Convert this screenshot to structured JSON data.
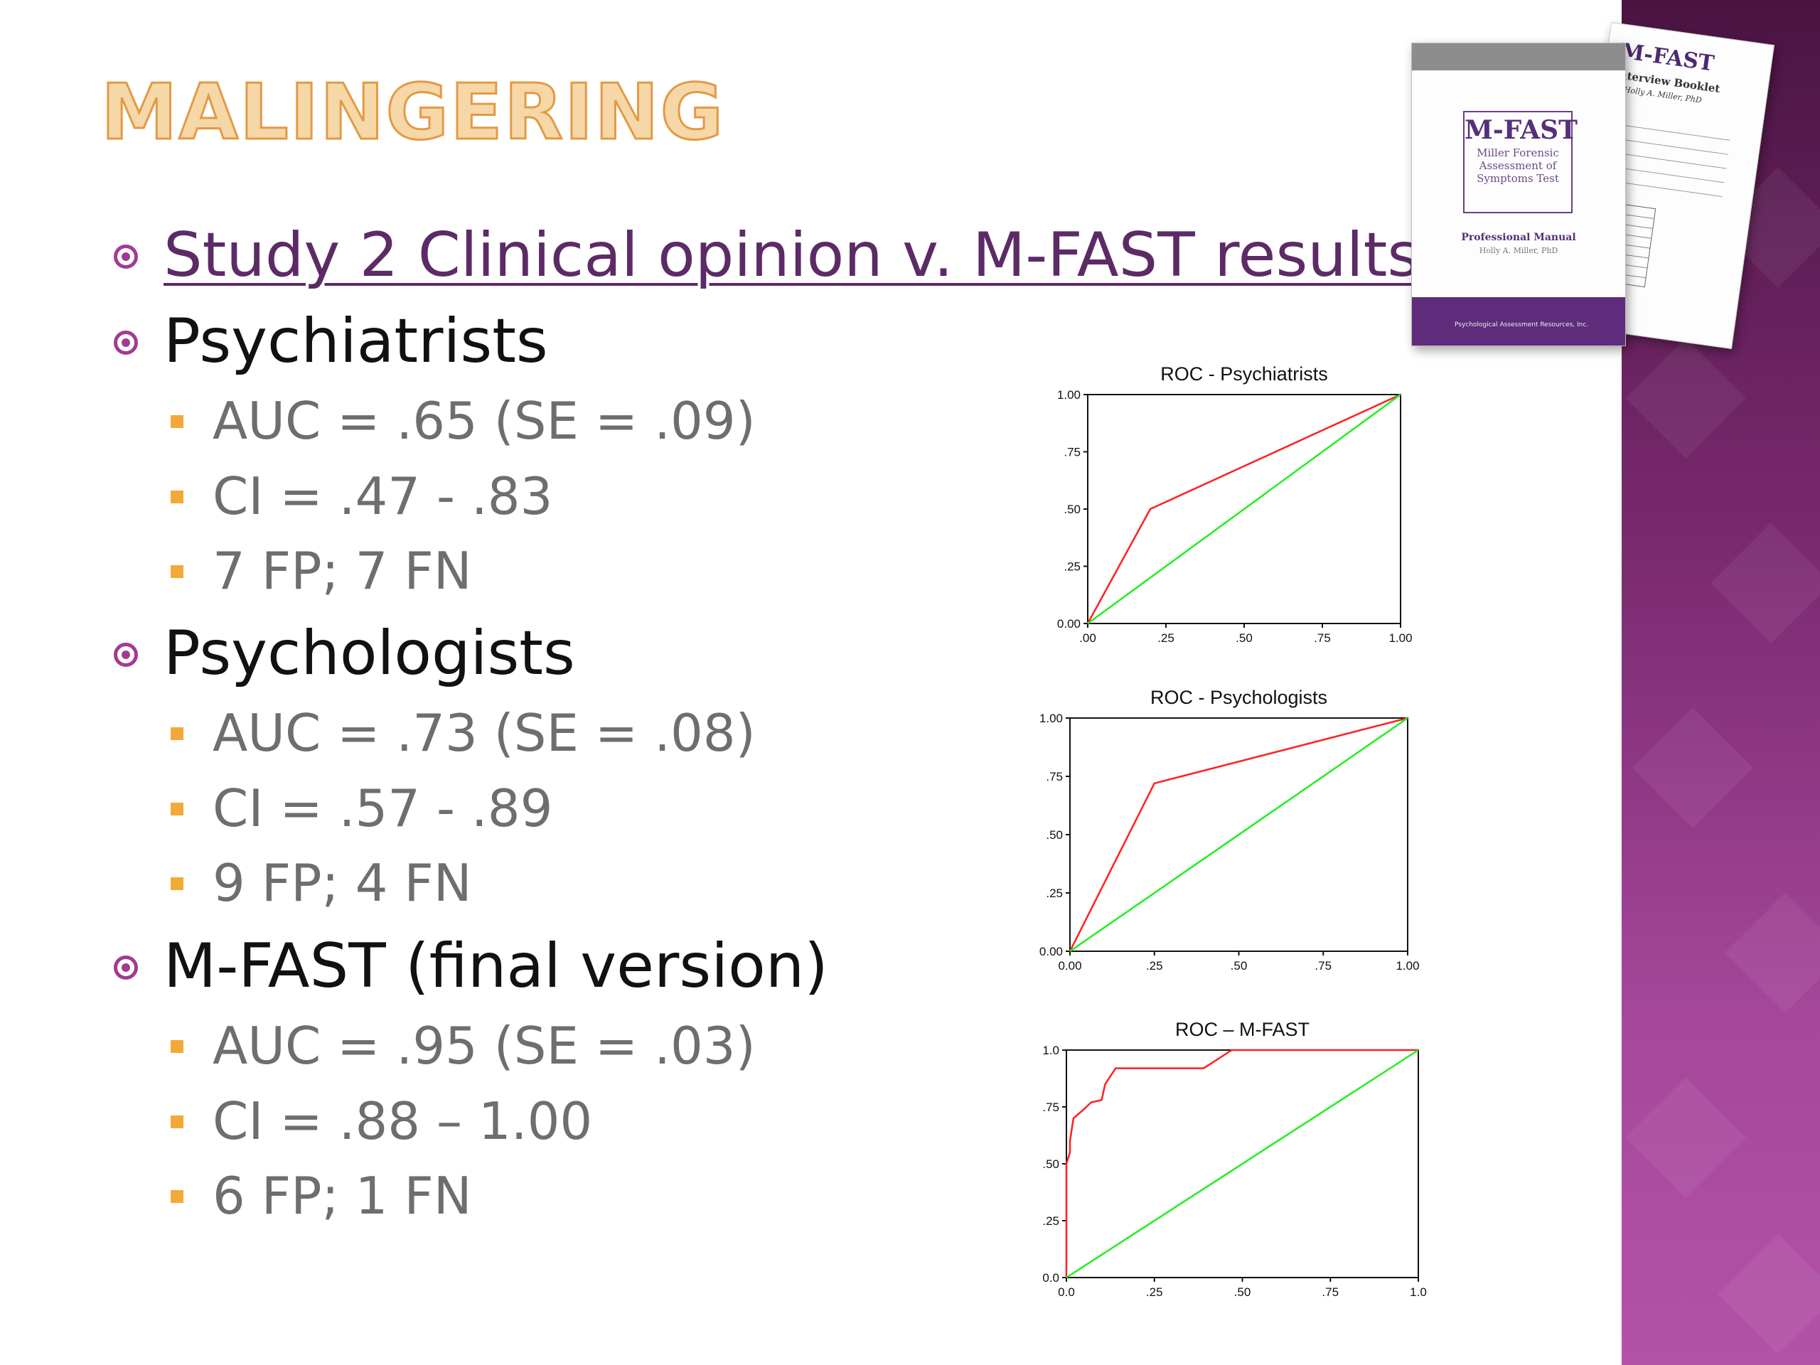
{
  "slide": {
    "title": "MALINGERING",
    "colors": {
      "title_fill": "#f6d7a8",
      "title_outline": "#e39a45",
      "accent": "#a23a94",
      "sub_bullet": "#f3a938",
      "link": "#5c2b66",
      "band": "#7a2a6f"
    }
  },
  "bullets": [
    {
      "text": "Study 2 Clinical opinion v. M-FAST results",
      "link": true,
      "children": []
    },
    {
      "text": "Psychiatrists",
      "children": [
        "AUC = .65 (SE = .09)",
        "CI = .47 - .83",
        "7 FP; 7 FN"
      ]
    },
    {
      "text": "Psychologists",
      "children": [
        "AUC = .73 (SE = .08)",
        "CI = .57 - .89",
        "9 FP; 4 FN"
      ]
    },
    {
      "text": "M-FAST (final version)",
      "children": [
        "AUC = .95 (SE = .03)",
        "CI = .88 – 1.00",
        "6 FP; 1 FN"
      ]
    }
  ],
  "product": {
    "front_title": "M-FAST",
    "front_subtitle": "Miller Forensic Assessment of Symptoms Test",
    "front_manual": "Professional Manual",
    "front_author": "Holly A. Miller, PhD",
    "front_publisher": "Psychological Assessment Resources, Inc.",
    "back_title": "M-FAST",
    "back_subtitle": "Interview Booklet",
    "back_author": "Holly A. Miller, PhD"
  },
  "chart_data": [
    {
      "type": "line",
      "title": "ROC - Psychiatrists",
      "xlim": [
        0,
        1
      ],
      "ylim": [
        0,
        1
      ],
      "x_ticks": [
        ".00",
        ".25",
        ".50",
        ".75",
        "1.00"
      ],
      "y_ticks": [
        "0.00",
        ".25",
        ".50",
        ".75",
        "1.00"
      ],
      "x_tick_values": [
        0,
        0.25,
        0.5,
        0.75,
        1
      ],
      "y_tick_values": [
        0,
        0.25,
        0.5,
        0.75,
        1
      ],
      "series": [
        {
          "color": "#ff2020",
          "x": [
            0,
            0.2,
            1
          ],
          "y": [
            0,
            0.5,
            1
          ]
        },
        {
          "color": "#22ee22",
          "x": [
            0,
            1
          ],
          "y": [
            0,
            1
          ]
        }
      ]
    },
    {
      "type": "line",
      "title": "ROC - Psychologists",
      "xlim": [
        0,
        1
      ],
      "ylim": [
        0,
        1
      ],
      "x_ticks": [
        "0.00",
        ".25",
        ".50",
        ".75",
        "1.00"
      ],
      "y_ticks": [
        "0.00",
        ".25",
        ".50",
        ".75",
        "1.00"
      ],
      "x_tick_values": [
        0,
        0.25,
        0.5,
        0.75,
        1
      ],
      "y_tick_values": [
        0,
        0.25,
        0.5,
        0.75,
        1
      ],
      "series": [
        {
          "color": "#ff2020",
          "x": [
            0,
            0.25,
            1
          ],
          "y": [
            0,
            0.72,
            1
          ]
        },
        {
          "color": "#22ee22",
          "x": [
            0,
            1
          ],
          "y": [
            0,
            1
          ]
        }
      ]
    },
    {
      "type": "line",
      "title": "ROC – M-FAST",
      "xlim": [
        0,
        1
      ],
      "ylim": [
        0,
        1
      ],
      "x_ticks": [
        "0.0",
        ".25",
        ".50",
        ".75",
        "1.0"
      ],
      "y_ticks": [
        "0.0",
        ".25",
        ".50",
        ".75",
        "1.0"
      ],
      "x_tick_values": [
        0,
        0.25,
        0.5,
        0.75,
        1
      ],
      "y_tick_values": [
        0,
        0.25,
        0.5,
        0.75,
        1
      ],
      "series": [
        {
          "color": "#ff2020",
          "x": [
            0,
            0,
            0.01,
            0.01,
            0.02,
            0.05,
            0.07,
            0.1,
            0.11,
            0.14,
            0.39,
            0.47,
            1
          ],
          "y": [
            0,
            0.5,
            0.55,
            0.6,
            0.7,
            0.74,
            0.77,
            0.78,
            0.85,
            0.92,
            0.92,
            1,
            1
          ]
        },
        {
          "color": "#22ee22",
          "x": [
            0,
            1
          ],
          "y": [
            0,
            1
          ]
        }
      ]
    }
  ]
}
